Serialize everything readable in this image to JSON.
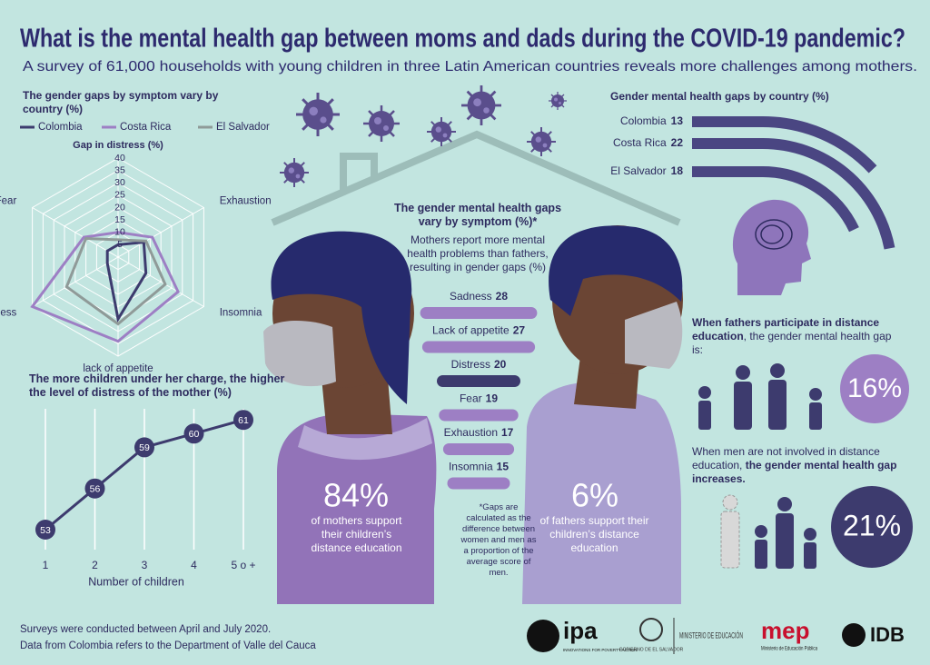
{
  "header": {
    "title": "What is the mental health gap between moms and dads during the COVID-19 pandemic?",
    "subtitle": "A survey of 61,000 households with young children in three Latin American countries reveals more challenges among mothers."
  },
  "chart_data": [
    {
      "type": "radar",
      "title": "The gender gaps by symptom vary by country (%)",
      "axis_title": "Gap in distress (%)",
      "categories": [
        null,
        "Exhaustion",
        "Insomnia",
        "lack of appetite",
        "Sadness",
        "Fear"
      ],
      "rlim": [
        0,
        40
      ],
      "rticks": [
        5,
        10,
        15,
        20,
        25,
        30,
        35,
        40
      ],
      "series": [
        {
          "name": "Colombia",
          "color": "#3d3b6e",
          "values": [
            5,
            12,
            13,
            25,
            5,
            5
          ]
        },
        {
          "name": "Costa Rica",
          "color": "#9d7fc4",
          "values": [
            10,
            16,
            28,
            34,
            40,
            16
          ]
        },
        {
          "name": "El Salvador",
          "color": "#8f9a98",
          "values": [
            7,
            13,
            22,
            27,
            24,
            15
          ]
        }
      ]
    },
    {
      "type": "line",
      "title": "The more children under her charge, the higher the level of distress of the mother (%)",
      "xlabel": "Number of children",
      "categories": [
        "1",
        "2",
        "3",
        "4",
        "5 o +"
      ],
      "values": [
        53,
        56,
        59,
        60,
        61
      ],
      "color": "#3d3b6e"
    },
    {
      "type": "hbar",
      "title": "The gender mental health gaps vary by symptom (%)*",
      "subtitle": "Mothers report more mental health problems than fathers, resulting in gender gaps (%)",
      "categories": [
        "Sadness",
        "Lack of appetite",
        "Distress",
        "Fear",
        "Exhaustion",
        "Insomnia"
      ],
      "values": [
        28,
        27,
        20,
        19,
        17,
        15
      ],
      "colors": [
        "#9d7fc4",
        "#9d7fc4",
        "#3d3b6e",
        "#9d7fc4",
        "#9d7fc4",
        "#9d7fc4"
      ],
      "note": "*Gaps are calculated as the difference between women and men as a proportion of the average score of men."
    },
    {
      "type": "arc",
      "title": "Gender mental health gaps by country (%)",
      "categories": [
        "Colombia",
        "Costa Rica",
        "El Salvador"
      ],
      "values": [
        13,
        22,
        18
      ],
      "color": "#4a4682"
    }
  ],
  "stats": {
    "mothers": {
      "value": "84%",
      "text": "of mothers support their children’s distance education"
    },
    "fathers": {
      "value": "6%",
      "text": "of fathers support their children’s distance education"
    },
    "participate": {
      "bold": "When fathers participate in distance education",
      "text": ", the gender mental health gap is:",
      "value": "16%"
    },
    "not_involved": {
      "text": "When men are not involved in distance education, ",
      "bold": "the gender mental health gap increases.",
      "value": "21%"
    }
  },
  "footer": {
    "notes": [
      "Surveys were conducted between April and July 2020.",
      "Data from Colombia refers to the Department of Valle del Cauca"
    ]
  },
  "logos": {
    "ipa": "ipa",
    "ipa_tagline": "INNOVATIONS FOR POVERTY ACTION",
    "el_salvador": "GOBIERNO DE EL SALVADOR",
    "ministerio": "MINISTERIO DE EDUCACIÓN",
    "mep": "mep",
    "mep_tagline": "Ministerio de Educación Pública",
    "idb": "IDB"
  }
}
